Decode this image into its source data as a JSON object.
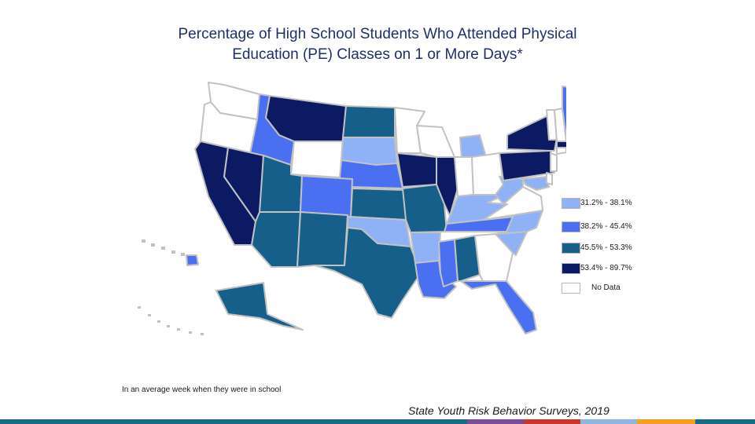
{
  "title_line1": "Percentage of High School Students Who Attended Physical",
  "title_line2": "Education (PE) Classes on 1 or More Days*",
  "legend": [
    {
      "label": "31.2% - 38.1%",
      "color": "#8fb1f5"
    },
    {
      "label": "38.2% - 45.4%",
      "color": "#4a6ff0"
    },
    {
      "label": "45.5% - 53.3%",
      "color": "#155f8a"
    },
    {
      "label": "53.4% - 89.7%",
      "color": "#0c1a63"
    },
    {
      "label": "No Data",
      "color": "#ffffff"
    }
  ],
  "footnote": "In an average week when they were in school",
  "source": "State Youth Risk Behavior Surveys, 2019",
  "bottom_bar_colors": [
    "#1a6a86",
    "#7a4a9c",
    "#c8372b",
    "#8fb6de",
    "#f2a01e",
    "#1a6a86"
  ],
  "states": {
    "WA": 4,
    "OR": 4,
    "ID": 1,
    "MT": 3,
    "WY": 4,
    "ND": 2,
    "SD": 0,
    "NE": 1,
    "CA": 3,
    "NV": 3,
    "UT": 2,
    "CO": 1,
    "KS": 2,
    "AZ": 2,
    "NM": 2,
    "OK": 0,
    "TX": 2,
    "MN": 4,
    "IA": 3,
    "MO": 2,
    "AR": 0,
    "LA": 1,
    "WI": 4,
    "IL": 3,
    "MI": 0,
    "IN": 4,
    "OH": 4,
    "KY": 0,
    "TN": 1,
    "MS": 1,
    "AL": 2,
    "GA": 4,
    "FL": 1,
    "SC": 0,
    "NC": 0,
    "VA": 4,
    "WV": 0,
    "PA": 3,
    "NY": 3,
    "MD": 0,
    "DE": 4,
    "NJ": 4,
    "CT": 4,
    "RI": 4,
    "MA": 3,
    "VT": 4,
    "NH": 4,
    "ME": 1,
    "AK": 2,
    "HI": 1
  }
}
